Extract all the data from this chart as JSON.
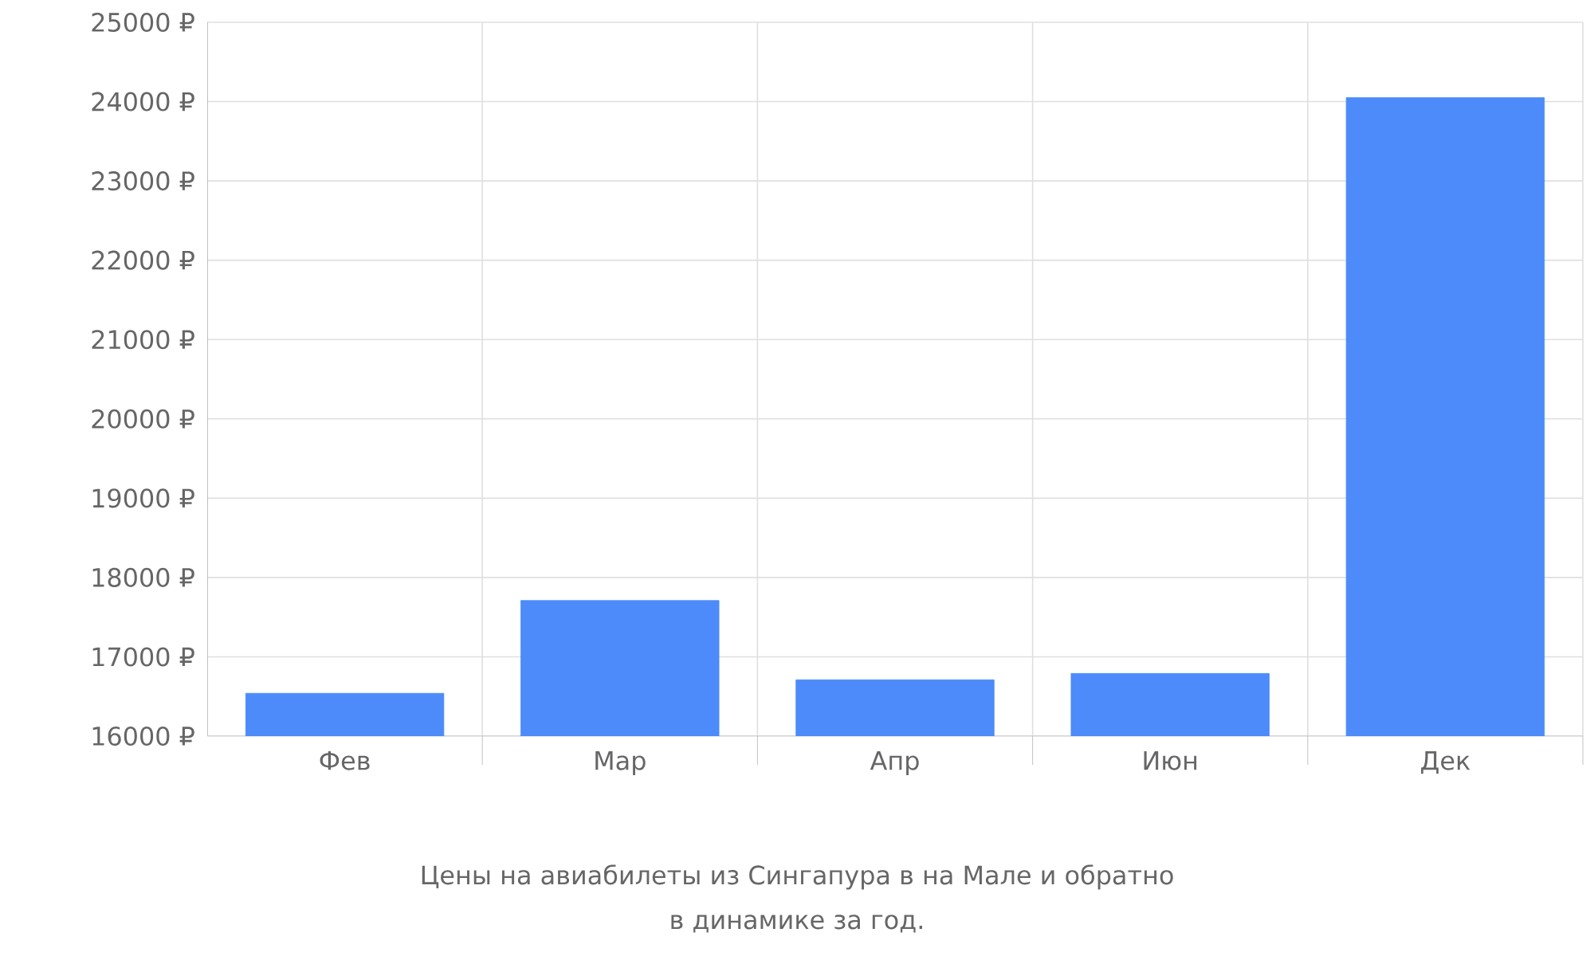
{
  "chart_data": {
    "type": "bar",
    "xlabel": "Цены на авиабилеты из Сингапура в на Мале и обратно",
    "annotations": [
      "в динамике за год."
    ],
    "categories": [
      "Фев",
      "Мар",
      "Апр",
      "Июн",
      "Дек"
    ],
    "values": [
      16540,
      17710,
      16710,
      16790,
      24050
    ],
    "color": "#4c8bf9",
    "ylim": [
      16000,
      25000
    ],
    "yticks": [
      {
        "value": 16000,
        "label": "16000 ₽"
      },
      {
        "value": 17000,
        "label": "17000 ₽"
      },
      {
        "value": 18000,
        "label": "18000 ₽"
      },
      {
        "value": 19000,
        "label": "19000 ₽"
      },
      {
        "value": 20000,
        "label": "20000 ₽"
      },
      {
        "value": 21000,
        "label": "21000 ₽"
      },
      {
        "value": 22000,
        "label": "22000 ₽"
      },
      {
        "value": 23000,
        "label": "23000 ₽"
      },
      {
        "value": 24000,
        "label": "24000 ₽"
      },
      {
        "value": 25000,
        "label": "25000 ₽"
      }
    ],
    "grid": true
  }
}
